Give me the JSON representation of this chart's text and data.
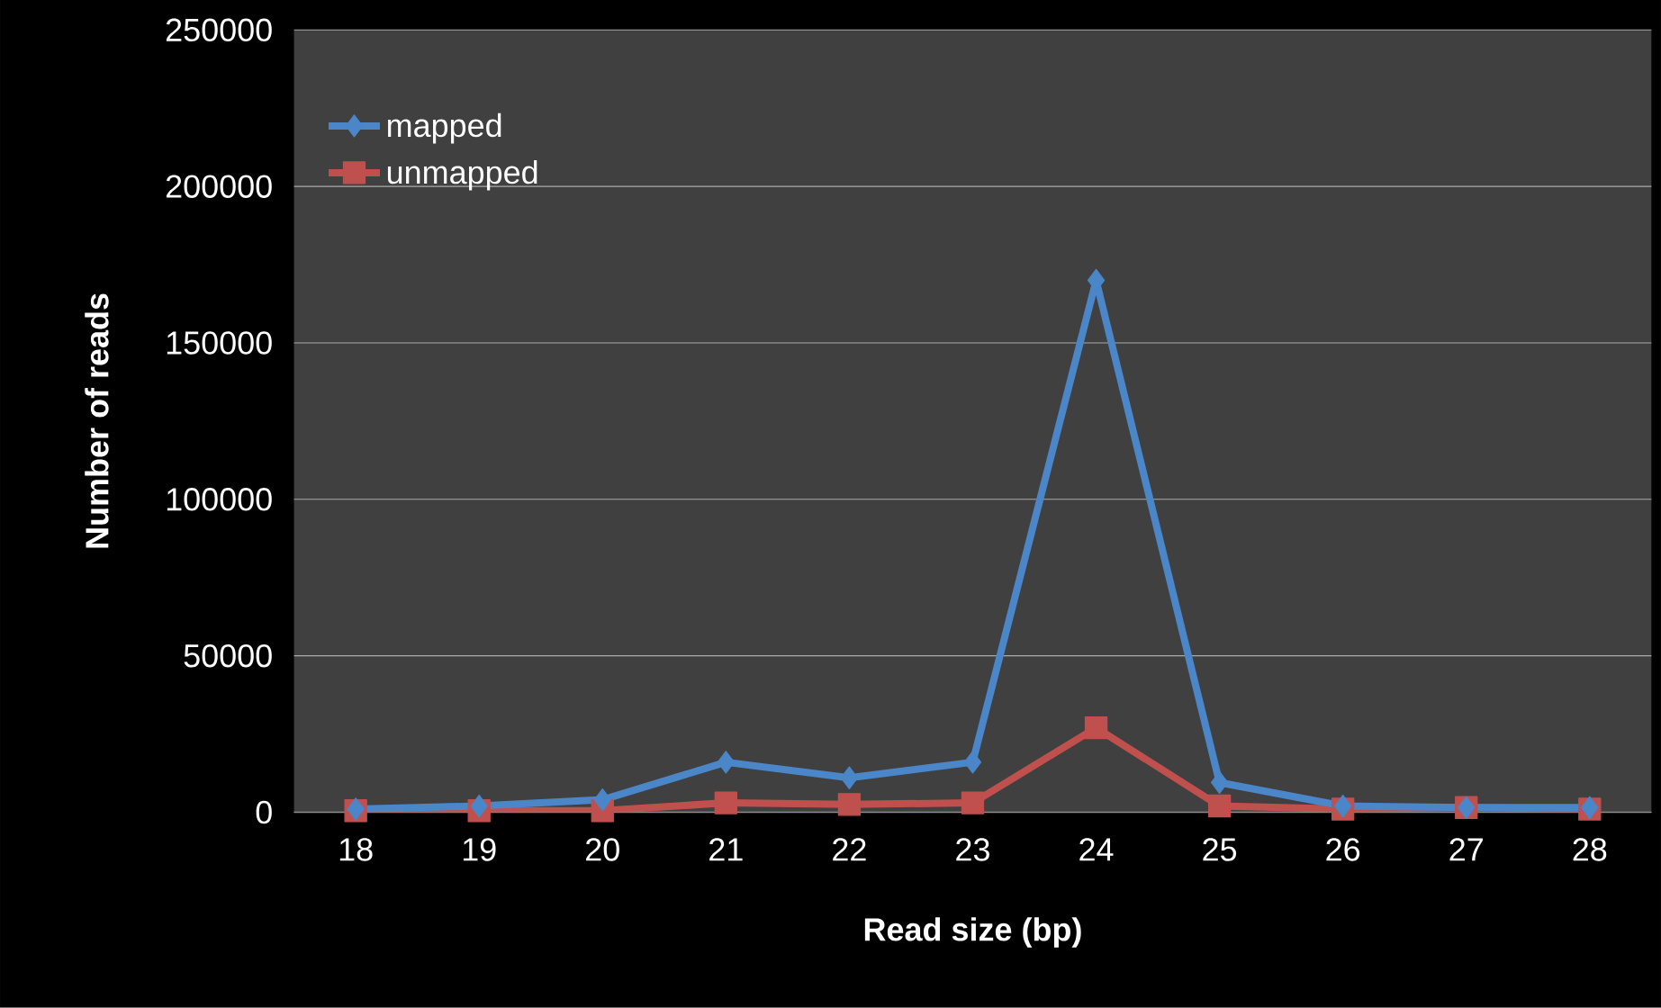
{
  "chart_data": {
    "type": "line",
    "xlabel": "Read size (bp)",
    "ylabel": "Number of reads",
    "categories": [
      "18",
      "19",
      "20",
      "21",
      "22",
      "23",
      "24",
      "25",
      "26",
      "27",
      "28"
    ],
    "series": [
      {
        "name": "mapped",
        "color": "#4a86c8",
        "marker": "diamond",
        "values": [
          1000,
          2000,
          4000,
          16000,
          11000,
          16000,
          170000,
          9500,
          2000,
          1500,
          1500
        ]
      },
      {
        "name": "unmapped",
        "color": "#c0504d",
        "marker": "square",
        "values": [
          500,
          500,
          500,
          3000,
          2500,
          3000,
          27000,
          2000,
          1000,
          1500,
          1000
        ]
      }
    ],
    "ylim": [
      0,
      250000
    ],
    "yticks": [
      0,
      50000,
      100000,
      150000,
      200000,
      250000
    ],
    "grid": "y",
    "legend": "top left"
  }
}
